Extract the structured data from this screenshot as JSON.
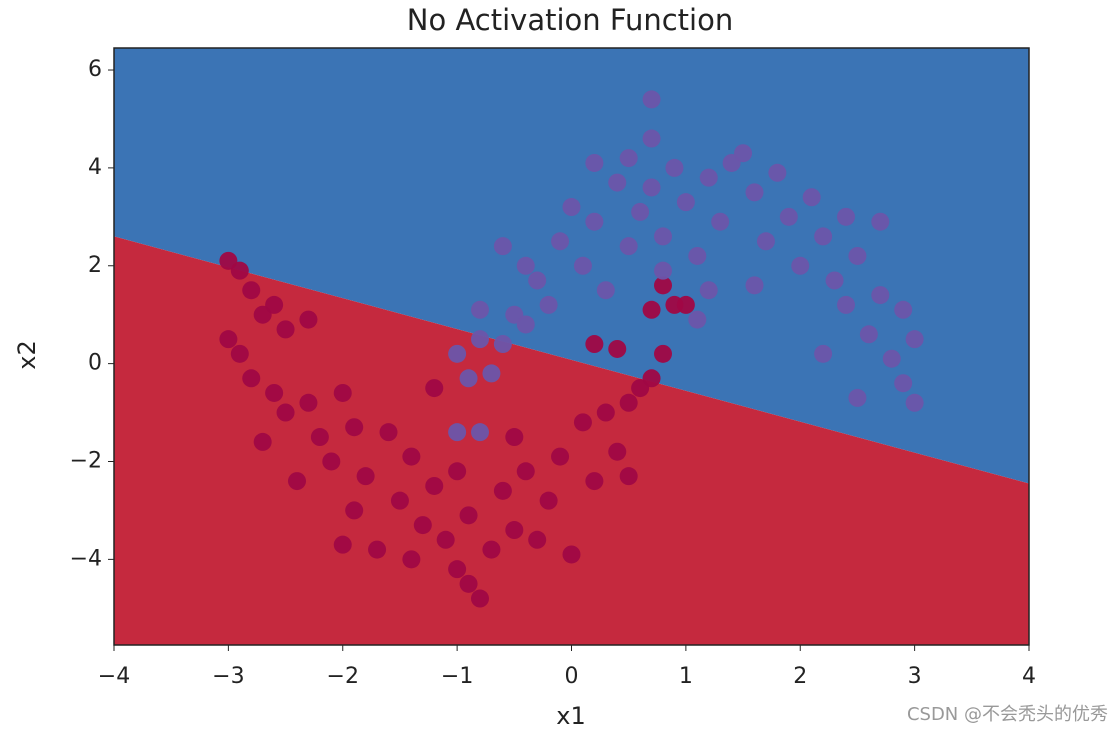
{
  "chart_data": {
    "type": "scatter",
    "title": "No Activation Function",
    "x_label": "x1",
    "y_label": "x2",
    "xlim": [
      -4,
      4
    ],
    "ylim": [
      -5.75,
      6.45
    ],
    "xticks": [
      {
        "value": -4,
        "label": "−4"
      },
      {
        "value": -3,
        "label": "−3"
      },
      {
        "value": -2,
        "label": "−2"
      },
      {
        "value": -1,
        "label": "−1"
      },
      0,
      1,
      2,
      3,
      4
    ],
    "yticks": [
      {
        "value": -4,
        "label": "−4"
      },
      {
        "value": -2,
        "label": "−2"
      },
      0,
      2,
      4,
      6
    ],
    "boundary": {
      "x": [
        -4,
        4
      ],
      "y": [
        2.6,
        -2.45
      ],
      "color_above": "#3b74b5",
      "color_below": "#c5293e"
    },
    "series": [
      {
        "color": "#a00744",
        "x": [
          -3,
          -2.9,
          -2.8,
          -3,
          -2.9,
          -2.7,
          -2.5,
          -2.8,
          -2.6,
          -2.5,
          -2.7,
          -2.3,
          -2.2,
          -2.0,
          -2.4,
          -2.1,
          -1.9,
          -1.8,
          -1.9,
          -2.0,
          -1.7,
          -1.5,
          -1.4,
          -1.6,
          -1.3,
          -1.4,
          -1.2,
          -1.1,
          -1.0,
          -1.0,
          -0.9,
          -0.8,
          -0.9,
          -0.7,
          -0.6,
          -0.5,
          -0.5,
          -0.4,
          -0.3,
          -0.2,
          -0.1,
          0,
          0.1,
          0.2,
          0.3,
          0.4,
          0.5,
          0.5,
          0.6,
          0.7,
          0.8,
          0.7,
          0.8,
          0.9,
          1.0,
          0.4,
          0.2,
          -1.2,
          -2.3,
          -2.6
        ],
        "values": [
          2.1,
          1.9,
          1.5,
          0.5,
          0.2,
          1.0,
          0.7,
          -0.3,
          -0.6,
          -1.0,
          -1.6,
          -0.8,
          -1.5,
          -0.6,
          -2.4,
          -2.0,
          -1.3,
          -2.3,
          -3.0,
          -3.7,
          -3.8,
          -2.8,
          -1.9,
          -1.4,
          -3.3,
          -4.0,
          -2.5,
          -3.6,
          -2.2,
          -4.2,
          -4.5,
          -4.8,
          -3.1,
          -3.8,
          -2.6,
          -3.4,
          -1.5,
          -2.2,
          -3.6,
          -2.8,
          -1.9,
          -3.9,
          -1.2,
          -2.4,
          -1.0,
          -1.8,
          -0.8,
          -2.3,
          -0.5,
          -0.3,
          0.2,
          1.1,
          1.6,
          1.2,
          1.2,
          0.3,
          0.4,
          -0.5,
          0.9,
          1.2
        ]
      },
      {
        "color": "#6b55aa",
        "x": [
          -1.0,
          -0.9,
          -0.8,
          -0.7,
          -0.6,
          -1.0,
          -0.8,
          -0.5,
          -0.6,
          -0.3,
          -0.4,
          -0.2,
          -0.1,
          0.0,
          0.1,
          0.2,
          0.2,
          0.3,
          0.4,
          0.5,
          0.5,
          0.6,
          0.7,
          0.7,
          0.7,
          0.8,
          0.9,
          1.0,
          1.1,
          1.2,
          1.3,
          1.4,
          1.5,
          1.6,
          1.7,
          1.8,
          1.9,
          2.0,
          2.1,
          2.2,
          2.3,
          2.4,
          2.4,
          2.5,
          2.6,
          2.7,
          2.7,
          2.8,
          2.9,
          2.9,
          3.0,
          3.0,
          2.5,
          2.2,
          1.2,
          1.1,
          0.8,
          -0.4,
          -0.8,
          1.6
        ],
        "values": [
          0.2,
          -0.3,
          0.5,
          -0.2,
          0.4,
          -1.4,
          -1.4,
          1.0,
          2.4,
          1.7,
          2.0,
          1.2,
          2.5,
          3.2,
          2.0,
          2.9,
          4.1,
          1.5,
          3.7,
          2.4,
          4.2,
          3.1,
          4.6,
          5.4,
          3.6,
          2.6,
          4.0,
          3.3,
          2.2,
          3.8,
          2.9,
          4.1,
          4.3,
          3.5,
          2.5,
          3.9,
          3.0,
          2.0,
          3.4,
          2.6,
          1.7,
          3.0,
          1.2,
          2.2,
          0.6,
          2.9,
          1.4,
          0.1,
          1.1,
          -0.4,
          0.5,
          -0.8,
          -0.7,
          0.2,
          1.5,
          0.9,
          1.9,
          0.8,
          1.1,
          1.6
        ]
      }
    ]
  },
  "watermark": "CSDN @不会秃头的优秀"
}
